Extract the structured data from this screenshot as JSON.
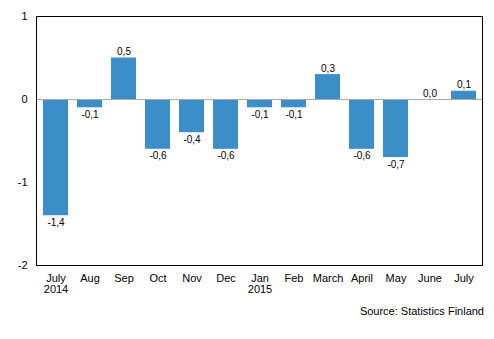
{
  "chart_data": {
    "type": "bar",
    "categories": [
      "July\n2014",
      "Aug",
      "Sep",
      "Oct",
      "Nov",
      "Dec",
      "Jan\n2015",
      "Feb",
      "March",
      "April",
      "May",
      "June",
      "July"
    ],
    "values": [
      -1.4,
      -0.1,
      0.5,
      -0.6,
      -0.4,
      -0.6,
      -0.1,
      -0.1,
      0.3,
      -0.6,
      -0.7,
      0.0,
      0.1
    ],
    "value_labels": [
      "-1,4",
      "-0,1",
      "0,5",
      "-0,6",
      "-0,4",
      "-0,6",
      "-0,1",
      "-0,1",
      "0,3",
      "-0,6",
      "-0,7",
      "0,0",
      "0,1"
    ],
    "data_labels": true,
    "color": "#3b8ec8",
    "ylim": [
      -2,
      1
    ],
    "yticks": [
      -2,
      -1,
      0,
      1
    ],
    "caption": "Source:  Statistics Finland"
  }
}
